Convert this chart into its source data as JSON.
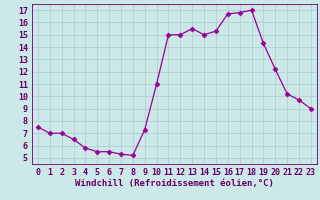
{
  "x": [
    0,
    1,
    2,
    3,
    4,
    5,
    6,
    7,
    8,
    9,
    10,
    11,
    12,
    13,
    14,
    15,
    16,
    17,
    18,
    19,
    20,
    21,
    22,
    23
  ],
  "y": [
    7.5,
    7.0,
    7.0,
    6.5,
    5.8,
    5.5,
    5.5,
    5.3,
    5.2,
    7.3,
    11.0,
    15.0,
    15.0,
    15.5,
    15.0,
    15.3,
    16.7,
    16.8,
    17.0,
    14.3,
    12.2,
    10.2,
    9.7,
    9.0
  ],
  "line_color": "#990099",
  "marker": "D",
  "marker_size": 2.5,
  "bg_color": "#cce8e8",
  "grid_color": "#aacccc",
  "xlabel": "Windchill (Refroidissement éolien,°C)",
  "xlim": [
    -0.5,
    23.5
  ],
  "ylim": [
    4.5,
    17.5
  ],
  "yticks": [
    5,
    6,
    7,
    8,
    9,
    10,
    11,
    12,
    13,
    14,
    15,
    16,
    17
  ],
  "xticks": [
    0,
    1,
    2,
    3,
    4,
    5,
    6,
    7,
    8,
    9,
    10,
    11,
    12,
    13,
    14,
    15,
    16,
    17,
    18,
    19,
    20,
    21,
    22,
    23
  ],
  "xlabel_fontsize": 6.5,
  "tick_fontsize": 6.0,
  "font_color": "#660066"
}
